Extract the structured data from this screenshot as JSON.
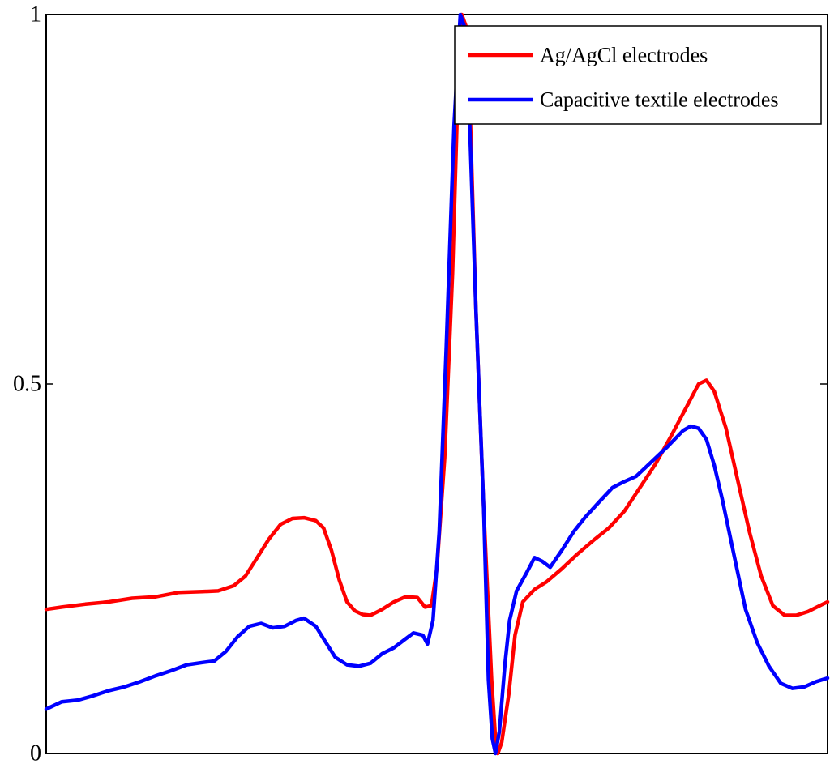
{
  "chart_data": {
    "type": "line",
    "title": "",
    "xlabel": "",
    "ylabel": "",
    "xlim": [
      0,
      100
    ],
    "ylim": [
      0,
      1
    ],
    "yticks": [
      0,
      0.5,
      1
    ],
    "ytick_labels": [
      "0",
      "0.5",
      "1"
    ],
    "grid": false,
    "legend_position": "top-right",
    "series": [
      {
        "name": "Ag/AgCl electrodes",
        "color": "#ff0000",
        "points": [
          [
            0,
            0.195
          ],
          [
            2,
            0.198
          ],
          [
            5,
            0.202
          ],
          [
            8,
            0.205
          ],
          [
            11,
            0.21
          ],
          [
            14,
            0.212
          ],
          [
            17,
            0.218
          ],
          [
            20,
            0.219
          ],
          [
            22,
            0.22
          ],
          [
            24,
            0.227
          ],
          [
            25.5,
            0.24
          ],
          [
            27,
            0.265
          ],
          [
            28.5,
            0.29
          ],
          [
            30,
            0.31
          ],
          [
            31.5,
            0.318
          ],
          [
            33,
            0.319
          ],
          [
            34.5,
            0.315
          ],
          [
            35.5,
            0.305
          ],
          [
            36.5,
            0.275
          ],
          [
            37.5,
            0.235
          ],
          [
            38.5,
            0.205
          ],
          [
            39.5,
            0.193
          ],
          [
            40.5,
            0.188
          ],
          [
            41.5,
            0.187
          ],
          [
            43,
            0.195
          ],
          [
            44.5,
            0.205
          ],
          [
            46,
            0.212
          ],
          [
            47.5,
            0.211
          ],
          [
            48.5,
            0.198
          ],
          [
            49.3,
            0.2
          ],
          [
            50,
            0.25
          ],
          [
            51,
            0.4
          ],
          [
            52,
            0.65
          ],
          [
            52.7,
            0.9
          ],
          [
            53.2,
            1.0
          ],
          [
            53.7,
            0.985
          ],
          [
            54.3,
            0.85
          ],
          [
            55,
            0.6
          ],
          [
            56,
            0.33
          ],
          [
            57,
            0.1
          ],
          [
            57.5,
            0.02
          ],
          [
            57.8,
            0.0
          ],
          [
            58.3,
            0.015
          ],
          [
            59.2,
            0.08
          ],
          [
            60,
            0.16
          ],
          [
            61,
            0.205
          ],
          [
            62.5,
            0.222
          ],
          [
            64,
            0.232
          ],
          [
            66,
            0.25
          ],
          [
            68,
            0.27
          ],
          [
            70,
            0.288
          ],
          [
            72,
            0.305
          ],
          [
            74,
            0.328
          ],
          [
            76,
            0.36
          ],
          [
            78,
            0.392
          ],
          [
            80,
            0.43
          ],
          [
            82,
            0.47
          ],
          [
            83.5,
            0.5
          ],
          [
            84.5,
            0.505
          ],
          [
            85.5,
            0.49
          ],
          [
            87,
            0.44
          ],
          [
            88.5,
            0.37
          ],
          [
            90,
            0.3
          ],
          [
            91.5,
            0.24
          ],
          [
            93,
            0.2
          ],
          [
            94.5,
            0.187
          ],
          [
            96,
            0.187
          ],
          [
            97.5,
            0.192
          ],
          [
            99,
            0.2
          ],
          [
            100,
            0.205
          ]
        ]
      },
      {
        "name": "Capacitive textile electrodes",
        "color": "#0000ff",
        "points": [
          [
            0,
            0.06
          ],
          [
            2,
            0.07
          ],
          [
            4,
            0.072
          ],
          [
            6,
            0.078
          ],
          [
            8,
            0.085
          ],
          [
            10,
            0.09
          ],
          [
            12,
            0.097
          ],
          [
            14,
            0.105
          ],
          [
            16,
            0.112
          ],
          [
            18,
            0.12
          ],
          [
            20,
            0.123
          ],
          [
            21.5,
            0.125
          ],
          [
            23,
            0.138
          ],
          [
            24.5,
            0.158
          ],
          [
            26,
            0.172
          ],
          [
            27.5,
            0.176
          ],
          [
            29,
            0.17
          ],
          [
            30.5,
            0.172
          ],
          [
            32,
            0.18
          ],
          [
            33,
            0.183
          ],
          [
            34.5,
            0.172
          ],
          [
            35.5,
            0.155
          ],
          [
            37,
            0.13
          ],
          [
            38.5,
            0.12
          ],
          [
            40,
            0.118
          ],
          [
            41.5,
            0.122
          ],
          [
            43,
            0.135
          ],
          [
            44.5,
            0.143
          ],
          [
            46,
            0.155
          ],
          [
            47,
            0.163
          ],
          [
            48.2,
            0.16
          ],
          [
            48.8,
            0.148
          ],
          [
            49.5,
            0.18
          ],
          [
            50.3,
            0.3
          ],
          [
            51.2,
            0.55
          ],
          [
            52.2,
            0.85
          ],
          [
            53,
            1.0
          ],
          [
            53.5,
            0.985
          ],
          [
            54.2,
            0.85
          ],
          [
            55,
            0.6
          ],
          [
            56,
            0.33
          ],
          [
            56.6,
            0.1
          ],
          [
            57.1,
            0.02
          ],
          [
            57.5,
            0.0
          ],
          [
            58,
            0.03
          ],
          [
            58.7,
            0.12
          ],
          [
            59.3,
            0.18
          ],
          [
            60.2,
            0.22
          ],
          [
            61.5,
            0.245
          ],
          [
            62.5,
            0.265
          ],
          [
            63.5,
            0.26
          ],
          [
            64.5,
            0.252
          ],
          [
            66,
            0.275
          ],
          [
            67.5,
            0.3
          ],
          [
            69,
            0.32
          ],
          [
            71,
            0.343
          ],
          [
            72.5,
            0.36
          ],
          [
            74,
            0.368
          ],
          [
            75.5,
            0.375
          ],
          [
            77.5,
            0.395
          ],
          [
            79.5,
            0.415
          ],
          [
            81.5,
            0.437
          ],
          [
            82.5,
            0.443
          ],
          [
            83.5,
            0.44
          ],
          [
            84.5,
            0.425
          ],
          [
            85.5,
            0.39
          ],
          [
            86.5,
            0.345
          ],
          [
            87.5,
            0.295
          ],
          [
            88.5,
            0.245
          ],
          [
            89.5,
            0.195
          ],
          [
            91,
            0.15
          ],
          [
            92.5,
            0.118
          ],
          [
            94,
            0.095
          ],
          [
            95.5,
            0.088
          ],
          [
            97,
            0.09
          ],
          [
            98.5,
            0.097
          ],
          [
            100,
            0.102
          ]
        ]
      }
    ]
  }
}
